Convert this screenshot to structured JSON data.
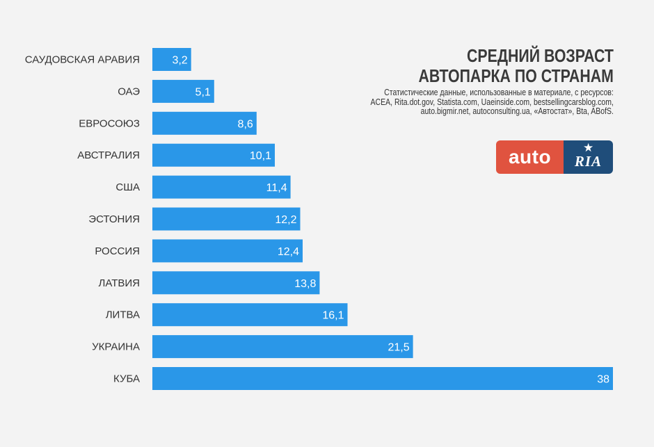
{
  "header": {
    "title_line1": "СРЕДНИЙ ВОЗРАСТ",
    "title_line2": "АВТОПАРКА ПО СТРАНАМ",
    "source_lines": [
      "Статистические данные, использованные в материале, с ресурсов:",
      "ACEA, Rita.dot.gov, Statista.com,  Uaeinside.com, bestsellingcarsblog.com,",
      "auto.bigmir.net, autoconsulting.ua, «Автостат», Bta, ABofS."
    ]
  },
  "logo": {
    "left_text": "auto",
    "right_text": "RIA",
    "icon": "star-icon",
    "left_color": "#e0533f",
    "right_color": "#1f4d7a"
  },
  "chart_data": {
    "type": "bar",
    "orientation": "horizontal",
    "title": "СРЕДНИЙ ВОЗРАСТ АВТОПАРКА ПО СТРАНАМ",
    "categories": [
      "САУДОВСКАЯ АРАВИЯ",
      "ОАЭ",
      "ЕВРОСОЮЗ",
      "АВСТРАЛИЯ",
      "США",
      "ЭСТОНИЯ",
      "РОССИЯ",
      "ЛАТВИЯ",
      "ЛИТВА",
      "УКРАИНА",
      "КУБА"
    ],
    "values": [
      3.2,
      5.1,
      8.6,
      10.1,
      11.4,
      12.2,
      12.4,
      13.8,
      16.1,
      21.5,
      38
    ],
    "value_labels": [
      "3,2",
      "5,1",
      "8,6",
      "10,1",
      "11,4",
      "12,2",
      "12,4",
      "13,8",
      "16,1",
      "21,5",
      "38"
    ],
    "xlim": [
      0,
      38
    ],
    "grid": false,
    "legend": "none",
    "bar_color": "#2a97e8",
    "value_label_color": "#ffffff"
  }
}
